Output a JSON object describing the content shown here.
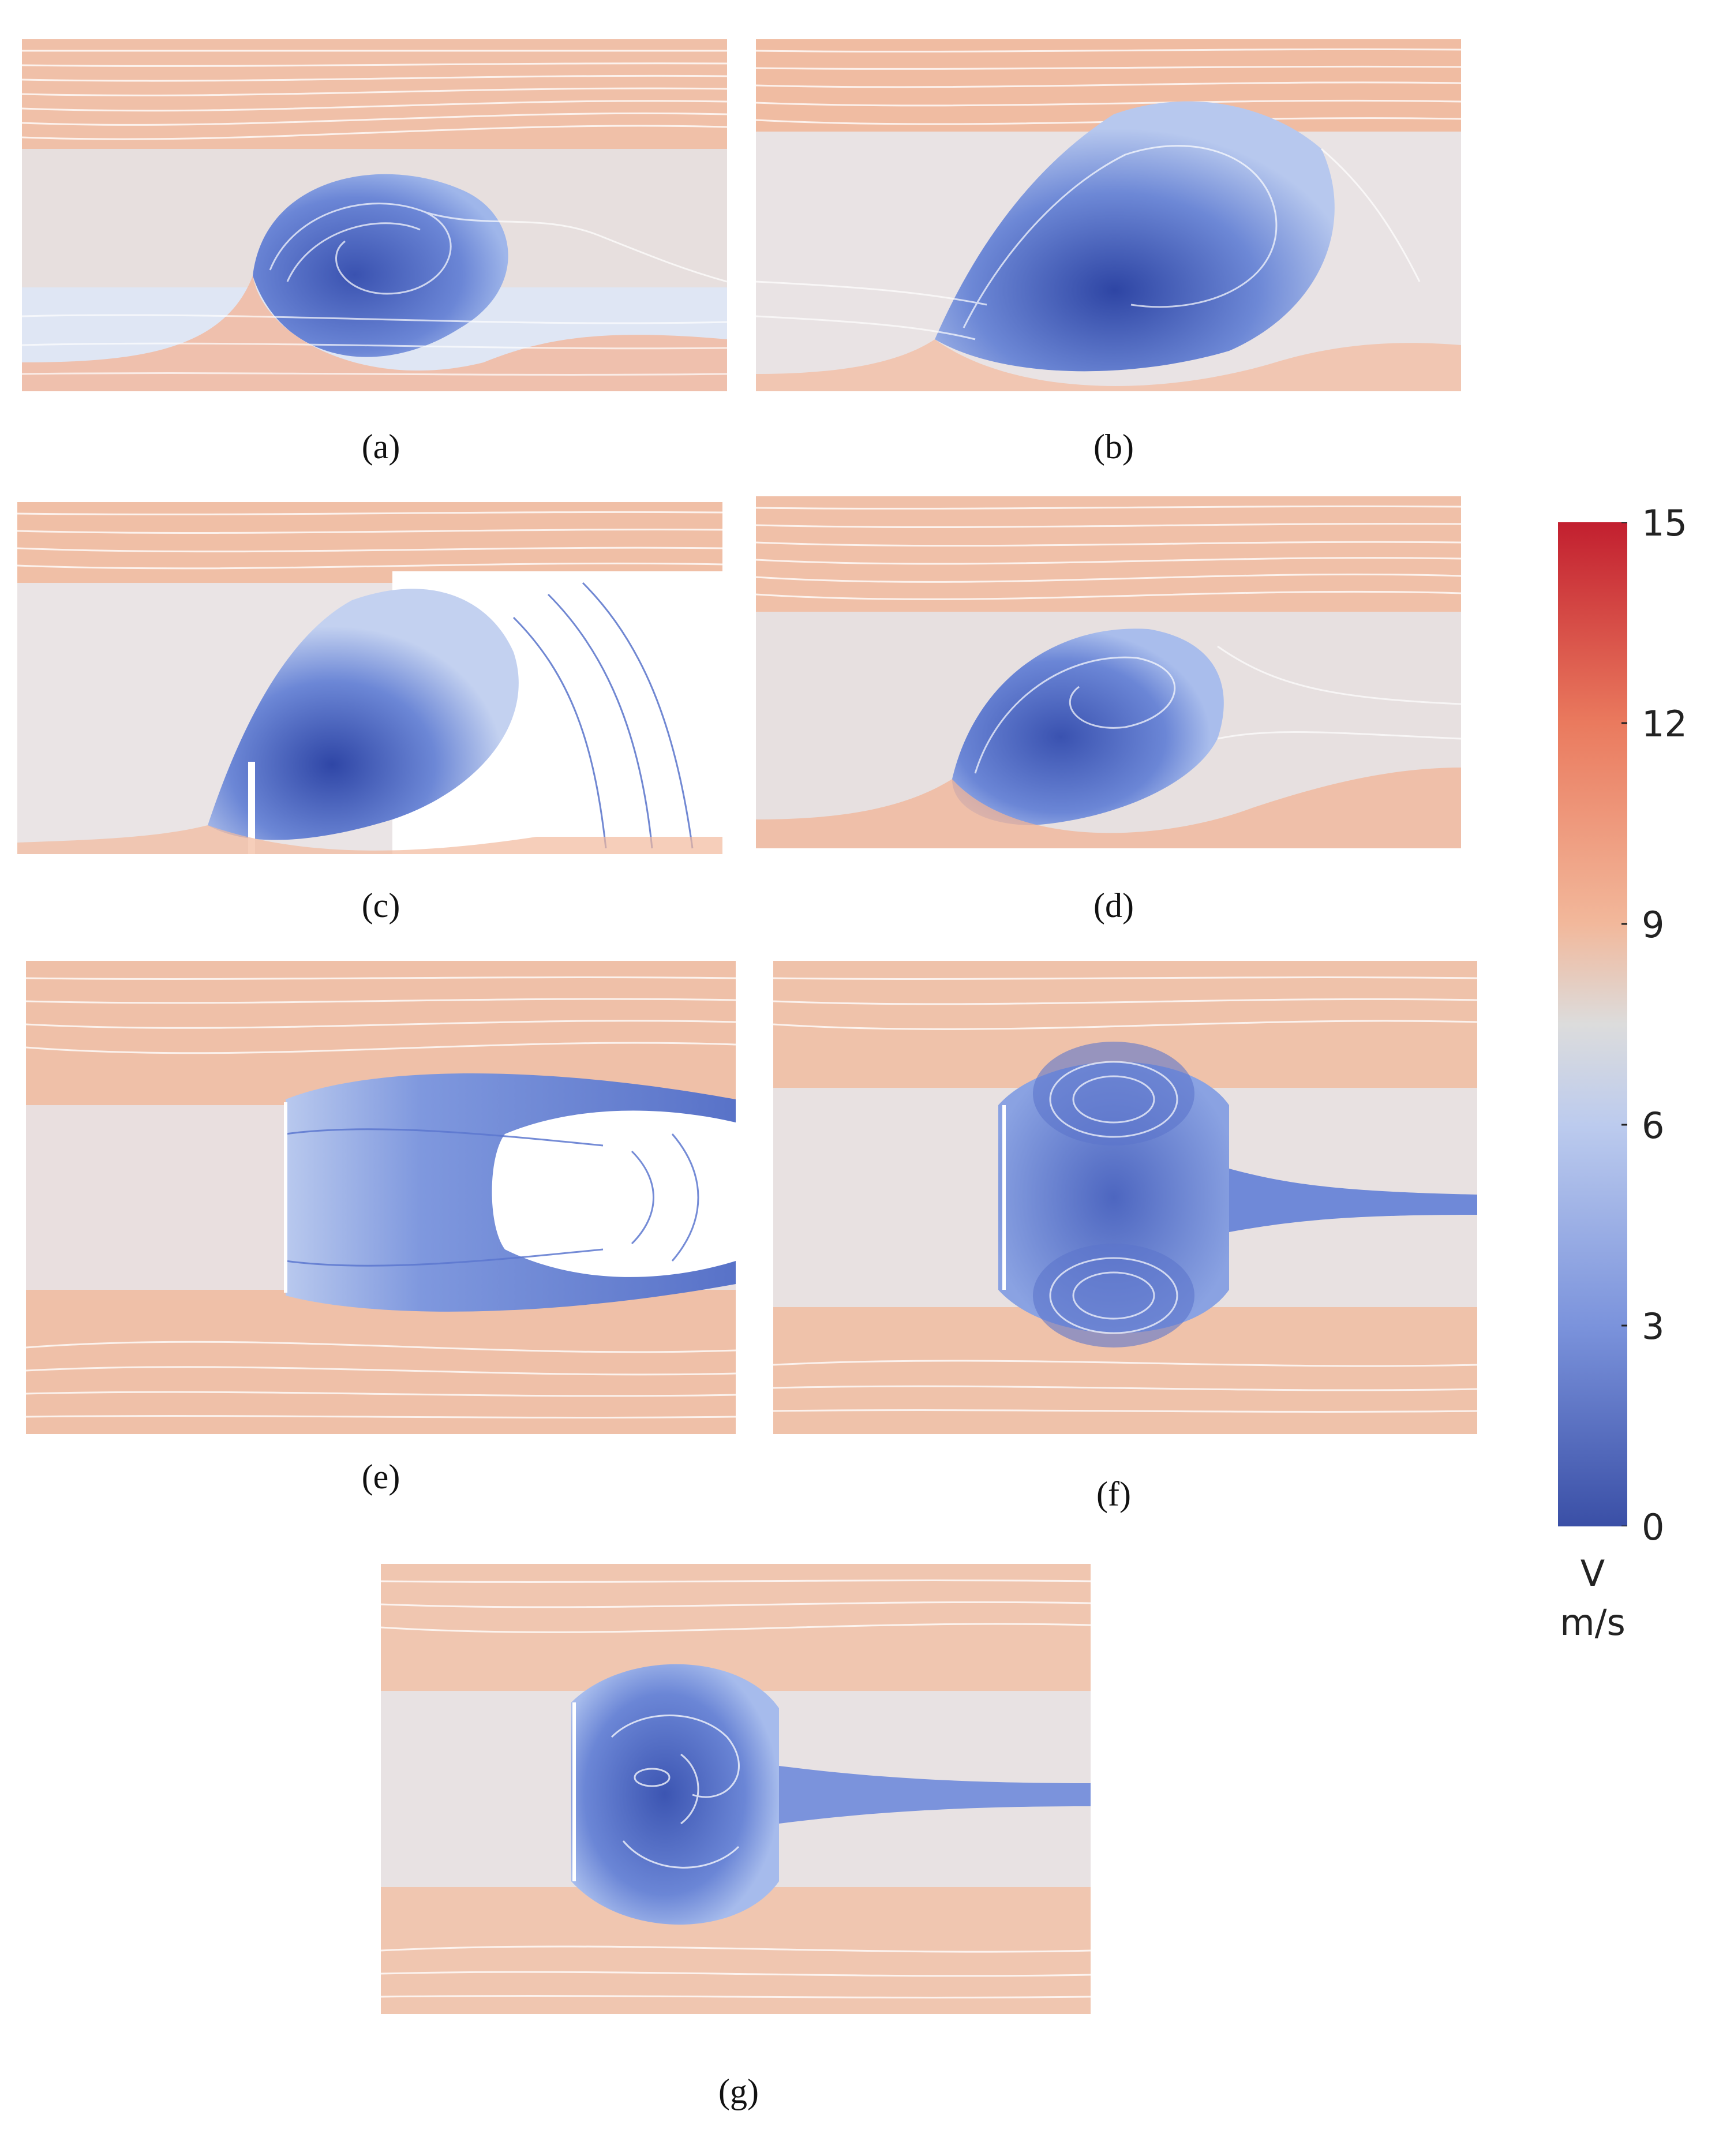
{
  "panels": [
    {
      "id": "a",
      "label": "(a)"
    },
    {
      "id": "b",
      "label": "(b)"
    },
    {
      "id": "c",
      "label": "(c)"
    },
    {
      "id": "d",
      "label": "(d)"
    },
    {
      "id": "e",
      "label": "(e)"
    },
    {
      "id": "f",
      "label": "(f)"
    },
    {
      "id": "g",
      "label": "(g)"
    }
  ],
  "colorbar": {
    "ticks": [
      "15",
      "12",
      "9",
      "6",
      "3",
      "0"
    ],
    "min": 0,
    "max": 15,
    "title": "V",
    "unit": "m/s",
    "colors": {
      "high": "#c21f2f",
      "mid": "#dcdcdc",
      "low": "#3a4fa6"
    }
  }
}
